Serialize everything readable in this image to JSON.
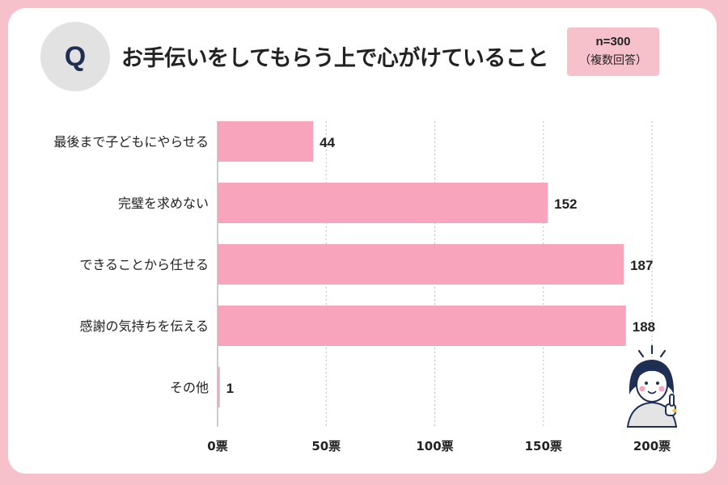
{
  "header": {
    "q_mark": "Q",
    "title": "お手伝いをしてもらう上で心がけていること",
    "sample_count": "n=300",
    "sample_note": "（複数回答）"
  },
  "colors": {
    "bar": "#f8a4bd",
    "frame": "#f7c1cc",
    "q_badge": "#e2e2e2",
    "q_text": "#1f2f54",
    "grid": "#bbbbbb"
  },
  "chart_data": {
    "type": "bar",
    "orientation": "horizontal",
    "categories": [
      "最後まで子どもにやらせる",
      "完璧を求めない",
      "できることから任せる",
      "感謝の気持ちを伝える",
      "その他"
    ],
    "values": [
      44,
      152,
      187,
      188,
      1
    ],
    "value_labels": [
      "44",
      "152",
      "187",
      "188",
      "1"
    ],
    "xlim": [
      0,
      200
    ],
    "x_ticks": [
      0,
      50,
      100,
      150,
      200
    ],
    "x_tick_labels": [
      "0票",
      "50票",
      "100票",
      "150票",
      "200票"
    ],
    "grid": true,
    "legend": "none"
  },
  "illustration": {
    "icon": "woman-pointing-up-icon"
  }
}
